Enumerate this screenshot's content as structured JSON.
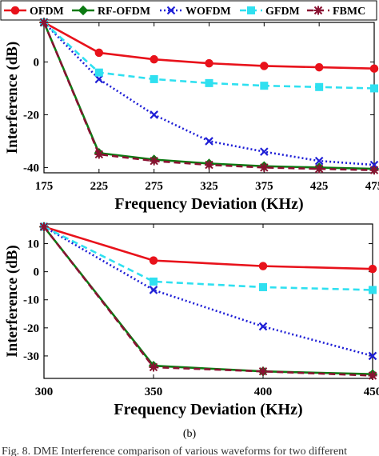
{
  "colors": {
    "OFDM": "#e8121b",
    "RF-OFDM": "#0b7a12",
    "WOFDM": "#1f1fd6",
    "GFDM": "#2fe0f0",
    "FBMC": "#8a1232"
  },
  "chart_data": [
    {
      "type": "line",
      "xlabel": "Frequency Deviation (KHz)",
      "ylabel": "Interference (dB)",
      "x": [
        175,
        225,
        275,
        325,
        375,
        425,
        475
      ],
      "xlim": [
        175,
        475
      ],
      "ylim": [
        -42,
        15
      ],
      "xticks": [
        175,
        225,
        275,
        325,
        375,
        425,
        475
      ],
      "yticks": [
        0,
        -20,
        -40
      ],
      "grid": false,
      "legend": "top, horizontal above plot",
      "series": [
        {
          "name": "OFDM",
          "marker": "circle",
          "dash": "solid",
          "values": [
            15,
            3.5,
            1,
            -0.5,
            -1.5,
            -2,
            -2.5
          ]
        },
        {
          "name": "RF-OFDM",
          "marker": "diamond",
          "dash": "solid",
          "values": [
            15,
            -34.5,
            -37,
            -38.5,
            -39.5,
            -40,
            -40.5
          ]
        },
        {
          "name": "WOFDM",
          "marker": "x",
          "dash": "dotted",
          "values": [
            15,
            -6.5,
            -20,
            -30,
            -34,
            -37.5,
            -39
          ]
        },
        {
          "name": "GFDM",
          "marker": "square",
          "dash": "dashed",
          "values": [
            15,
            -4,
            -6.5,
            -8,
            -9,
            -9.5,
            -10
          ]
        },
        {
          "name": "FBMC",
          "marker": "asterisk",
          "dash": "dashed",
          "values": [
            15,
            -35,
            -37.5,
            -39,
            -40,
            -40.5,
            -41
          ]
        }
      ]
    },
    {
      "type": "line",
      "xlabel": "Frequency Deviation (KHz)",
      "ylabel": "Interference (dB)",
      "x": [
        300,
        350,
        400,
        450
      ],
      "xlim": [
        300,
        450
      ],
      "ylim": [
        -38,
        17
      ],
      "xticks": [
        300,
        350,
        400,
        450
      ],
      "yticks": [
        10,
        0,
        -10,
        -20,
        -30
      ],
      "grid": false,
      "series": [
        {
          "name": "OFDM",
          "marker": "circle",
          "dash": "solid",
          "values": [
            16,
            4,
            2,
            1
          ]
        },
        {
          "name": "RF-OFDM",
          "marker": "diamond",
          "dash": "solid",
          "values": [
            16,
            -33.5,
            -35.5,
            -36.5
          ]
        },
        {
          "name": "WOFDM",
          "marker": "x",
          "dash": "dotted",
          "values": [
            16,
            -6.5,
            -19.5,
            -30
          ]
        },
        {
          "name": "GFDM",
          "marker": "square",
          "dash": "dashed",
          "values": [
            16,
            -3.5,
            -5.5,
            -6.5
          ]
        },
        {
          "name": "FBMC",
          "marker": "asterisk",
          "dash": "dashed",
          "values": [
            16,
            -34,
            -35.5,
            -37
          ]
        }
      ]
    }
  ],
  "subfigure_label": "(b)",
  "caption": "Fig. 8.  DME Interference comparison of various waveforms for two different"
}
